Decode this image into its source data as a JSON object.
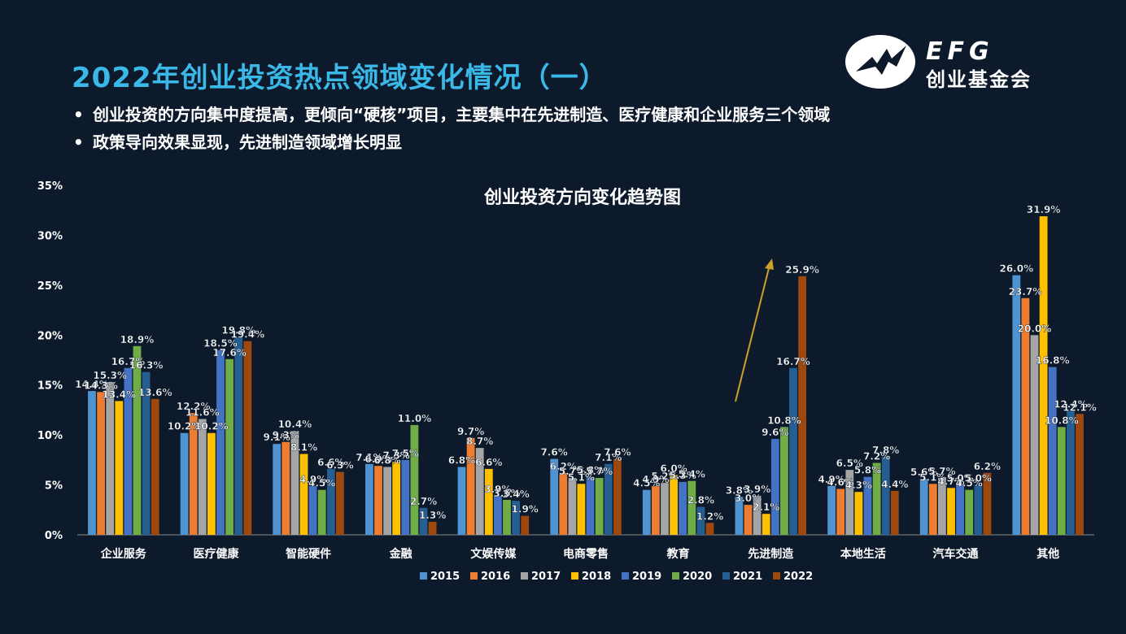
{
  "slide": {
    "title": "2022年创业投资热点领域变化情况（一）",
    "bullets": [
      "创业投资的方向集中度提高，更倾向“硬核”项目，主要集中在先进制造、医疗健康和企业服务三个领域",
      "政策导向效果显现，先进制造领域增长明显"
    ],
    "bullet_glyph": "•",
    "logo": {
      "text": "EFG",
      "subtitle": "创业基金会"
    }
  },
  "chart_data": {
    "type": "bar",
    "title": "创业投资方向变化趋势图",
    "categories": [
      "企业服务",
      "医疗健康",
      "智能硬件",
      "金融",
      "文娱传媒",
      "电商零售",
      "教育",
      "先进制造",
      "本地生活",
      "汽车交通",
      "其他"
    ],
    "series": [
      {
        "name": "2015",
        "color": "#4f93d1",
        "values": [
          14.4,
          10.2,
          9.1,
          7.1,
          6.8,
          7.6,
          4.5,
          3.8,
          4.9,
          5.6,
          26.0
        ]
      },
      {
        "name": "2016",
        "color": "#ed7d31",
        "values": [
          14.3,
          12.2,
          9.3,
          6.9,
          9.7,
          6.2,
          4.9,
          3.0,
          4.6,
          5.1,
          23.7
        ]
      },
      {
        "name": "2017",
        "color": "#a5a5a5",
        "values": [
          15.3,
          11.6,
          10.4,
          6.8,
          8.7,
          5.7,
          5.2,
          3.9,
          6.5,
          5.7,
          20.0
        ]
      },
      {
        "name": "2018",
        "color": "#ffc000",
        "values": [
          13.4,
          10.2,
          8.1,
          7.3,
          6.6,
          5.1,
          6.0,
          2.1,
          4.3,
          4.7,
          31.9
        ]
      },
      {
        "name": "2019",
        "color": "#4472c4",
        "values": [
          16.7,
          18.5,
          4.9,
          7.5,
          3.9,
          5.8,
          5.3,
          9.6,
          5.8,
          5.0,
          16.8
        ]
      },
      {
        "name": "2020",
        "color": "#70ad47",
        "values": [
          18.9,
          17.6,
          4.5,
          11.0,
          3.5,
          5.7,
          5.4,
          10.8,
          7.2,
          4.5,
          10.8
        ]
      },
      {
        "name": "2021",
        "color": "#255e91",
        "values": [
          16.3,
          19.8,
          6.6,
          2.7,
          3.4,
          7.1,
          2.8,
          16.7,
          7.8,
          5.0,
          12.4
        ]
      },
      {
        "name": "2022",
        "color": "#9e480e",
        "values": [
          13.6,
          19.4,
          6.3,
          1.3,
          1.9,
          7.6,
          1.2,
          25.9,
          4.4,
          6.2,
          12.1
        ]
      }
    ],
    "ylim": [
      0,
      35
    ],
    "yticks": [
      "0%",
      "5%",
      "10%",
      "15%",
      "20%",
      "25%",
      "30%",
      "35%"
    ],
    "value_suffix": "%",
    "grid": false,
    "legend": "bottom",
    "annotation": "upward trend arrow near 先进制造"
  }
}
